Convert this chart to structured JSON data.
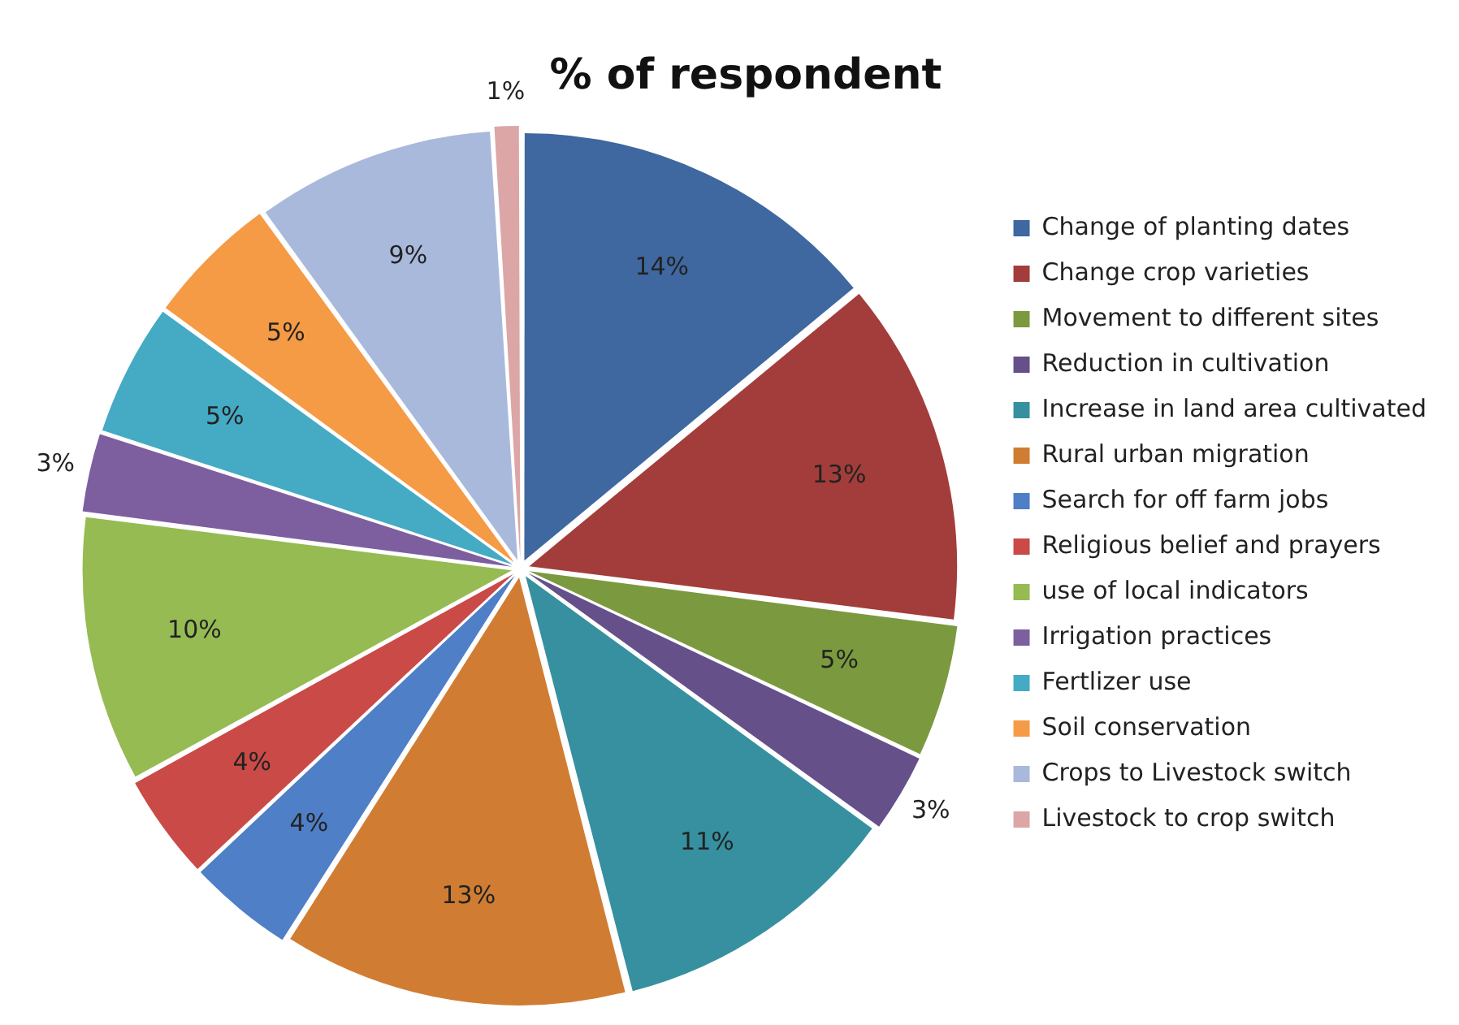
{
  "chart_data": {
    "type": "pie",
    "title": "% of respondent",
    "categories": [
      "Change of planting dates",
      "Change crop varieties",
      "Movement to different sites",
      "Reduction in cultivation",
      "Increase in land area cultivated",
      "Rural urban migration",
      "Search for off farm jobs",
      "Religious belief and prayers",
      "use of local indicators",
      "Irrigation practices",
      "Fertlizer use",
      "Soil conservation",
      "Crops to Livestock switch",
      "Livestock to crop switch"
    ],
    "values": [
      14,
      13,
      5,
      3,
      11,
      13,
      4,
      4,
      10,
      3,
      5,
      5,
      9,
      1
    ],
    "colors": [
      "#3f67a0",
      "#a33d3b",
      "#7b9a3f",
      "#65508a",
      "#36909f",
      "#d07d33",
      "#4f7fc6",
      "#c94a46",
      "#95bb52",
      "#7d5fa0",
      "#45aac4",
      "#f59a45",
      "#a9b9dc",
      "#dca6a6"
    ],
    "value_labels": [
      "14%",
      "13%",
      "5%",
      "3%",
      "11%",
      "13%",
      "4%",
      "4%",
      "10%",
      "3%",
      "5%",
      "5%",
      "9%",
      "1%"
    ],
    "legend": "right"
  }
}
